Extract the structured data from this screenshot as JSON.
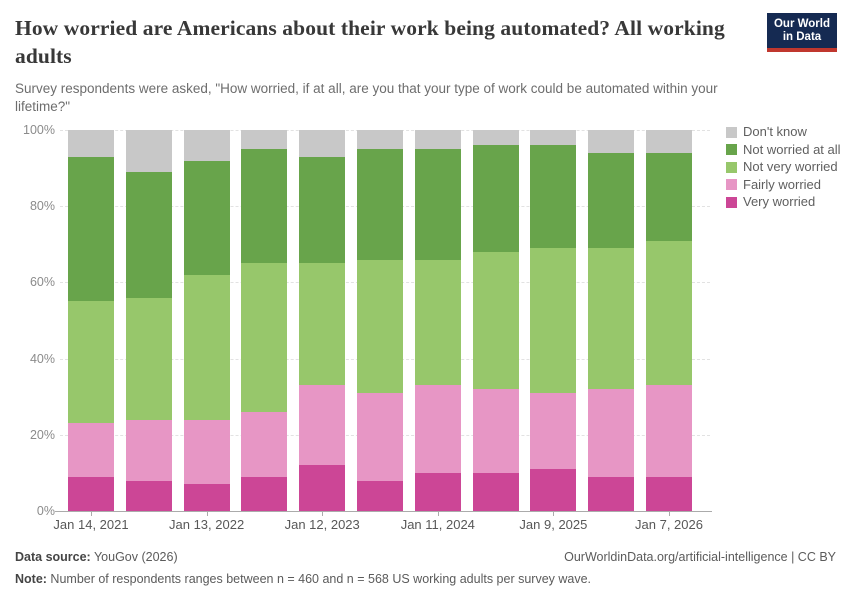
{
  "header": {
    "title": "How worried are Americans about their work being automated? All working adults",
    "subtitle": "Survey respondents were asked, \"How worried, if at all, are you that your type of work could be automated within your lifetime?\"",
    "logo": {
      "line1": "Our World",
      "line2": "in Data",
      "bg_color": "#152a52",
      "stripe_color": "#c0372e"
    }
  },
  "legend": {
    "position": "right",
    "items": [
      {
        "label": "Don't know",
        "color": "#c8c8c8"
      },
      {
        "label": "Not worried at all",
        "color": "#68a44b"
      },
      {
        "label": "Not very worried",
        "color": "#97c76b"
      },
      {
        "label": "Fairly worried",
        "color": "#e796c5"
      },
      {
        "label": "Very worried",
        "color": "#cc4696"
      }
    ]
  },
  "chart_data": {
    "type": "bar",
    "stacked": true,
    "num_bars": 11,
    "ylim": [
      0,
      100
    ],
    "unit": "%",
    "grid": "dashed horizontal",
    "y_ticks": [
      {
        "value": 0,
        "label": "0%"
      },
      {
        "value": 20,
        "label": "20%"
      },
      {
        "value": 40,
        "label": "40%"
      },
      {
        "value": 60,
        "label": "60%"
      },
      {
        "value": 80,
        "label": "80%"
      },
      {
        "value": 100,
        "label": "100%"
      }
    ],
    "x_ticks": [
      {
        "bar_index": 0,
        "label": "Jan 14, 2021"
      },
      {
        "bar_index": 2,
        "label": "Jan 13, 2022"
      },
      {
        "bar_index": 4,
        "label": "Jan 12, 2023"
      },
      {
        "bar_index": 6,
        "label": "Jan 11, 2024"
      },
      {
        "bar_index": 8,
        "label": "Jan 9, 2025"
      },
      {
        "bar_index": 10,
        "label": "Jan 7, 2026"
      }
    ],
    "series_bottom_to_top": [
      {
        "name": "Very worried",
        "color": "#cc4696",
        "values": [
          9,
          8,
          7,
          9,
          12,
          8,
          10,
          10,
          11,
          9,
          9
        ]
      },
      {
        "name": "Fairly worried",
        "color": "#e796c5",
        "values": [
          14,
          16,
          17,
          17,
          21,
          23,
          23,
          22,
          20,
          23,
          24
        ]
      },
      {
        "name": "Not very worried",
        "color": "#97c76b",
        "values": [
          32,
          32,
          38,
          39,
          32,
          35,
          33,
          36,
          38,
          37,
          38
        ]
      },
      {
        "name": "Not worried at all",
        "color": "#68a44b",
        "values": [
          38,
          33,
          30,
          30,
          28,
          29,
          29,
          28,
          27,
          25,
          23
        ]
      },
      {
        "name": "Don't know",
        "color": "#c8c8c8",
        "values": [
          7,
          11,
          8,
          5,
          7,
          5,
          5,
          4,
          4,
          6,
          6
        ]
      }
    ]
  },
  "footer": {
    "data_source_label": "Data source:",
    "data_source_value": " YouGov (2026)",
    "rights": "OurWorldinData.org/artificial-intelligence | CC BY",
    "note_label": "Note:",
    "note_value": " Number of respondents ranges between n = 460 and n = 568 US working adults per survey wave."
  }
}
